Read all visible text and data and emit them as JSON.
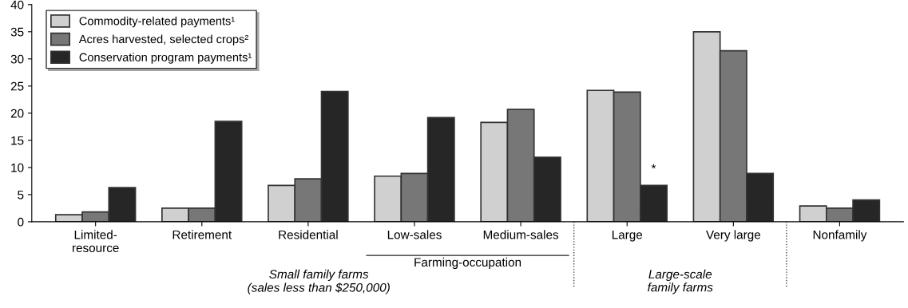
{
  "chart_data": {
    "type": "bar",
    "categories": [
      "Limited-\nresource",
      "Retirement",
      "Residential",
      "Low-sales",
      "Medium-sales",
      "Large",
      "Very large",
      "Nonfamily"
    ],
    "series": [
      {
        "name": "Commodity-related payments¹",
        "color": "#d0d0d0",
        "values": [
          1.3,
          2.5,
          6.7,
          8.4,
          18.3,
          24.2,
          35.0,
          2.9
        ]
      },
      {
        "name": "Acres harvested, selected crops²",
        "color": "#777777",
        "values": [
          1.8,
          2.5,
          7.9,
          8.9,
          20.7,
          23.9,
          31.5,
          2.5
        ]
      },
      {
        "name": "Conservation program payments¹",
        "color": "#262626",
        "values": [
          6.3,
          18.5,
          24.0,
          19.2,
          11.9,
          6.7,
          8.9,
          4.0
        ]
      }
    ],
    "ylim": [
      0,
      40
    ],
    "yticks": [
      0,
      5,
      10,
      15,
      20,
      25,
      30,
      35,
      40
    ],
    "grid": false,
    "legend": "top left",
    "annotations": [
      "*",
      "Small family farms\n(sales less than $250,000)",
      "Farming-occupation",
      "Large-scale\nfamily farms"
    ]
  }
}
